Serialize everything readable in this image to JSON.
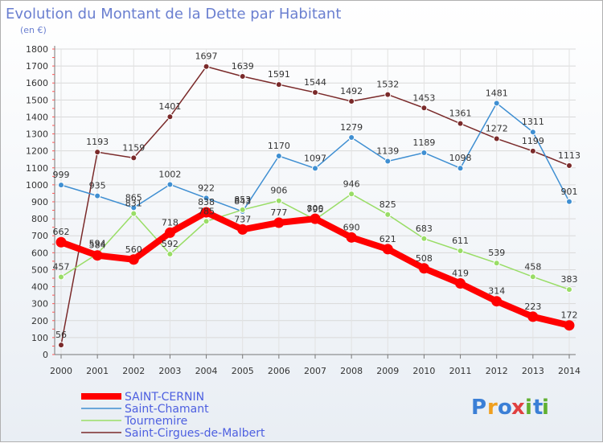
{
  "chart_data": {
    "type": "line",
    "title": "Evolution du Montant de la Dette par Habitant",
    "subtitle": "(en €)",
    "x": [
      "2000",
      "2001",
      "2002",
      "2003",
      "2004",
      "2005",
      "2006",
      "2007",
      "2008",
      "2009",
      "2010",
      "2011",
      "2012",
      "2013",
      "2014"
    ],
    "ylim": [
      0,
      1800
    ],
    "yticks": [
      0,
      100,
      200,
      300,
      400,
      500,
      600,
      700,
      800,
      900,
      1000,
      1100,
      1200,
      1300,
      1400,
      1500,
      1600,
      1700,
      1800
    ],
    "grid": true,
    "legend_position": "bottom-left",
    "series": [
      {
        "name": "SAINT-CERNIN",
        "color": "#ff0000",
        "values": [
          662,
          584,
          560,
          718,
          838,
          737,
          777,
          800,
          690,
          621,
          508,
          419,
          314,
          223,
          172
        ]
      },
      {
        "name": "Saint-Chamant",
        "color": "#3f8fd2",
        "values": [
          999,
          935,
          865,
          1002,
          922,
          843,
          1170,
          1097,
          1279,
          1139,
          1189,
          1098,
          1481,
          1311,
          901
        ]
      },
      {
        "name": "Tournemire",
        "color": "#99dd66",
        "values": [
          457,
          594,
          831,
          592,
          785,
          853,
          906,
          795,
          946,
          825,
          683,
          611,
          539,
          458,
          383
        ]
      },
      {
        "name": "Saint-Cirgues-de-Malbert",
        "color": "#7a2a2a",
        "values": [
          56,
          1193,
          1159,
          1401,
          1697,
          1639,
          1591,
          1544,
          1492,
          1532,
          1453,
          1361,
          1272,
          1199,
          1113
        ]
      }
    ]
  },
  "logo": {
    "text": "Proxiti",
    "letters": [
      "P",
      "r",
      "o",
      "x",
      "i",
      "t",
      "i"
    ],
    "colors": [
      "#3b7fd6",
      "#f0a020",
      "#3b7fd6",
      "#e04040",
      "#60b030",
      "#3b7fd6",
      "#60b030"
    ]
  }
}
